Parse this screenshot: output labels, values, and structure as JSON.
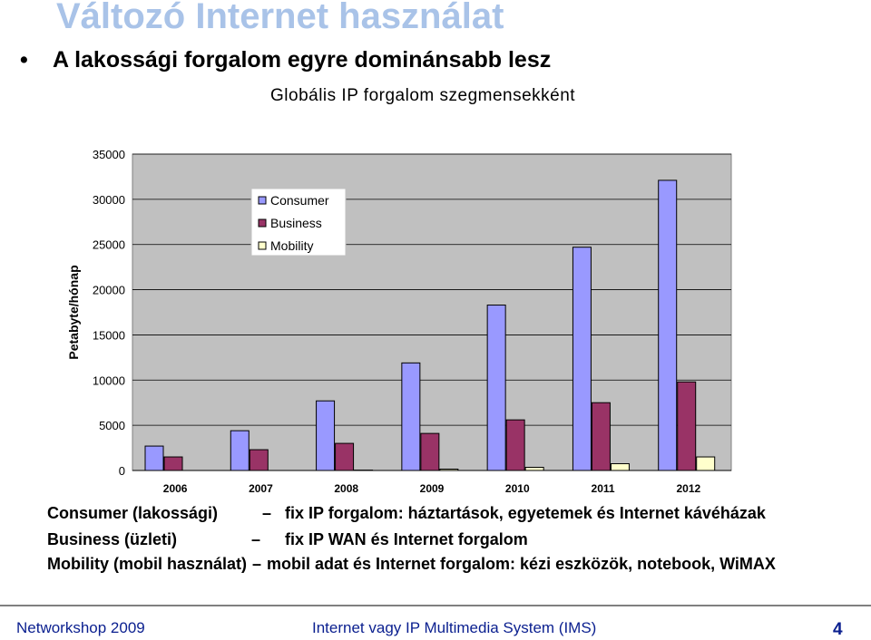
{
  "slide": {
    "title": "Változó Internet használat",
    "bullet": "A lakossági forgalom egyre dominánsabb lesz",
    "bullet_symbol": "•"
  },
  "chart_data": {
    "type": "bar",
    "title": "Globális IP forgalom szegmensekként",
    "ylabel": "Petabyte/hónap",
    "xlabel": "",
    "categories": [
      "2006",
      "2007",
      "2008",
      "2009",
      "2010",
      "2011",
      "2012"
    ],
    "ylim": [
      0,
      35000
    ],
    "yticks": [
      0,
      5000,
      10000,
      15000,
      20000,
      25000,
      30000,
      35000
    ],
    "grid": true,
    "legend_position": "top-left",
    "series": [
      {
        "name": "Consumer",
        "color": "#9999ff",
        "values": [
          2700,
          4400,
          7700,
          11900,
          18300,
          24700,
          32100
        ]
      },
      {
        "name": "Business",
        "color": "#993366",
        "values": [
          1500,
          2300,
          3000,
          4100,
          5600,
          7500,
          9800
        ]
      },
      {
        "name": "Mobility",
        "color": "#ffffcc",
        "values": [
          0,
          0,
          40,
          150,
          350,
          750,
          1500
        ]
      }
    ],
    "plot_background": "#c0c0c0"
  },
  "descriptions": [
    {
      "label": "Consumer (lakossági)",
      "dash": "–",
      "text": "fix IP forgalom:  háztartások, egyetemek és Internet kávéházak"
    },
    {
      "label": "Business (üzleti)",
      "dash": "–",
      "text": "fix IP WAN és Internet forgalom"
    },
    {
      "label": "Mobility (mobil használat)",
      "dash": "–",
      "text": "mobil adat és Internet forgalom: kézi eszközök, notebook, WiMAX"
    }
  ],
  "footer": {
    "left": "Networkshop 2009",
    "center": "Internet vagy IP Multimedia System (IMS)",
    "page": "4"
  }
}
